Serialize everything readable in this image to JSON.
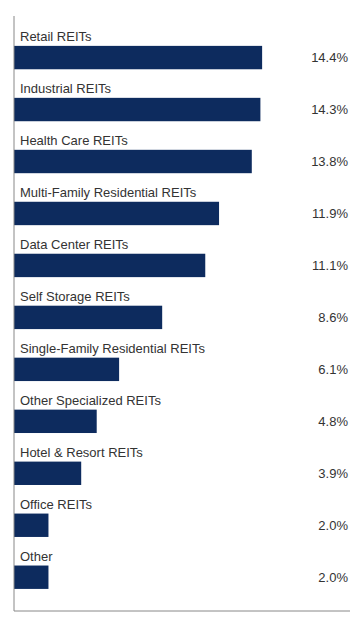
{
  "chart_data": {
    "type": "bar",
    "orientation": "horizontal",
    "categories": [
      "Other",
      "Office REITs",
      "Hotel & Resort REITs",
      "Other Specialized REITs",
      "Single-Family Residential REITs",
      "Self Storage REITs",
      "Data Center REITs",
      "Multi-Family Residential REITs",
      "Health Care REITs",
      "Industrial REITs",
      "Retail REITs"
    ],
    "values": [
      2.0,
      2.0,
      3.9,
      4.8,
      6.1,
      8.6,
      11.1,
      11.9,
      13.8,
      14.3,
      14.4
    ],
    "value_labels": [
      "2.0%",
      "2.0%",
      "3.9%",
      "4.8%",
      "6.1%",
      "8.6%",
      "11.1%",
      "11.9%",
      "13.8%",
      "14.3%",
      "14.4%"
    ],
    "data_labels": true,
    "color": "#0d2b5e",
    "xlim": [
      0,
      19.5
    ],
    "tick_labels": false,
    "grid": false
  }
}
